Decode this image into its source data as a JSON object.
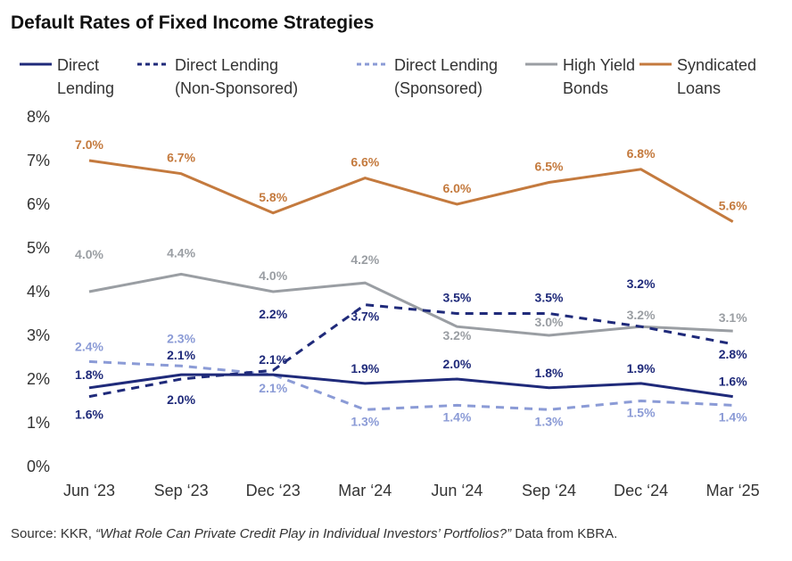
{
  "chart_data": {
    "type": "line",
    "title": "Default Rates of Fixed Income Strategies",
    "categories": [
      "Jun ‘23",
      "Sep ‘23",
      "Dec ‘23",
      "Mar ‘24",
      "Jun ‘24",
      "Sep ‘24",
      "Dec ‘24",
      "Mar ‘25"
    ],
    "ylim": [
      0,
      8
    ],
    "yticks": [
      "0%",
      "1%",
      "2%",
      "3%",
      "4%",
      "5%",
      "6%",
      "7%",
      "8%"
    ],
    "grid": false,
    "legend_position": "top",
    "series": [
      {
        "name": "Direct Lending",
        "style": "solid",
        "color": "#1f2a7a",
        "values": [
          1.8,
          2.1,
          2.1,
          1.9,
          2.0,
          1.8,
          1.9,
          1.6
        ],
        "labels": [
          "1.8%",
          "2.1%",
          "2.1%",
          "1.9%",
          "2.0%",
          "1.8%",
          "1.9%",
          "1.6%"
        ]
      },
      {
        "name": "Direct Lending (Non-Sponsored)",
        "style": "dashed",
        "color": "#1f2a7a",
        "values": [
          1.6,
          2.0,
          2.2,
          3.7,
          3.5,
          3.5,
          3.2,
          2.8
        ],
        "labels": [
          "1.6%",
          "2.0%",
          "2.2%",
          "3.7%",
          "3.5%",
          "3.5%",
          "3.2%",
          "2.8%"
        ]
      },
      {
        "name": "Direct Lending (Sponsored)",
        "style": "dashed",
        "color": "#8b9bd6",
        "values": [
          2.4,
          2.3,
          2.1,
          1.3,
          1.4,
          1.3,
          1.5,
          1.4
        ],
        "labels": [
          "2.4%",
          "2.3%",
          "2.1%",
          "1.3%",
          "1.4%",
          "1.3%",
          "1.5%",
          "1.4%"
        ]
      },
      {
        "name": "High Yield Bonds",
        "style": "solid",
        "color": "#9a9ea3",
        "values": [
          4.0,
          4.4,
          4.0,
          4.2,
          3.2,
          3.0,
          3.2,
          3.1
        ],
        "labels": [
          "4.0%",
          "4.4%",
          "4.0%",
          "4.2%",
          "3.2%",
          "3.0%",
          "3.2%",
          "3.1%"
        ]
      },
      {
        "name": "Syndicated Loans",
        "style": "solid",
        "color": "#c47a3e",
        "values": [
          7.0,
          6.7,
          5.8,
          6.6,
          6.0,
          6.5,
          6.8,
          5.6
        ],
        "labels": [
          "7.0%",
          "6.7%",
          "5.8%",
          "6.6%",
          "6.0%",
          "6.5%",
          "6.8%",
          "5.6%"
        ]
      }
    ],
    "legend": [
      {
        "line1": "Direct",
        "line2": "Lending"
      },
      {
        "line1": "Direct Lending",
        "line2": "(Non-Sponsored)"
      },
      {
        "line1": "Direct Lending",
        "line2": "(Sponsored)"
      },
      {
        "line1": "High Yield",
        "line2": "Bonds"
      },
      {
        "line1": "Syndicated",
        "line2": "Loans"
      }
    ]
  },
  "source": {
    "prefix": "Source: KKR, ",
    "italic": "“What Role Can Private Credit Play in Individual Investors’ Portfolios?”",
    "suffix": " Data from KBRA."
  }
}
